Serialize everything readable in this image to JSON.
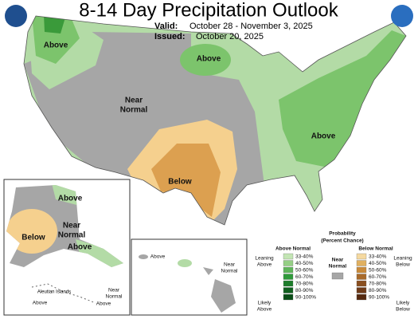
{
  "header": {
    "title": "8-14 Day Precipitation Outlook",
    "valid_label": "Valid:",
    "valid": "October 28 - November 3, 2025",
    "issued_label": "Issued:",
    "issued": "October 20, 2025"
  },
  "map_labels": [
    [
      "Above"
    ],
    [
      "Above"
    ],
    [
      "Near",
      "Normal"
    ],
    [
      "Below"
    ],
    [
      "Above"
    ]
  ],
  "alaska_labels": [
    [
      "Above"
    ],
    [
      "Near",
      "Normal"
    ],
    [
      "Below"
    ],
    [
      "Above"
    ]
  ],
  "aleutian": {
    "name": "Aleutian Islands",
    "labels": [
      [
        "Near",
        "Normal"
      ],
      [
        "Above"
      ],
      [
        "Above"
      ]
    ]
  },
  "hawaii_labels": [
    [
      "Above"
    ],
    [
      "Near",
      "Normal"
    ]
  ],
  "legend": {
    "title": "Probability",
    "subtitle": "(Percent Chance)",
    "above_heading": "Above Normal",
    "below_heading": "Below Normal",
    "near": [
      "Near",
      "Normal"
    ],
    "near_color": "#a6a6a6",
    "leaning_above": [
      "Leaning",
      "Above"
    ],
    "likely_above": [
      "Likely",
      "Above"
    ],
    "leaning_below": [
      "Leaning",
      "Below"
    ],
    "likely_below": [
      "Likely",
      "Below"
    ],
    "ranges": [
      "33-40%",
      "40-50%",
      "50-60%",
      "60-70%",
      "70-80%",
      "80-90%",
      "90-100%"
    ],
    "above_colors": [
      "#c3e5b4",
      "#95cf85",
      "#5fb55a",
      "#2f9a3a",
      "#1d7d2b",
      "#0f5f1e",
      "#084d16"
    ],
    "below_colors": [
      "#f5d9a0",
      "#e0b060",
      "#c98a3a",
      "#a86a2a",
      "#8a4f20",
      "#6e3a18",
      "#55290f"
    ]
  }
}
